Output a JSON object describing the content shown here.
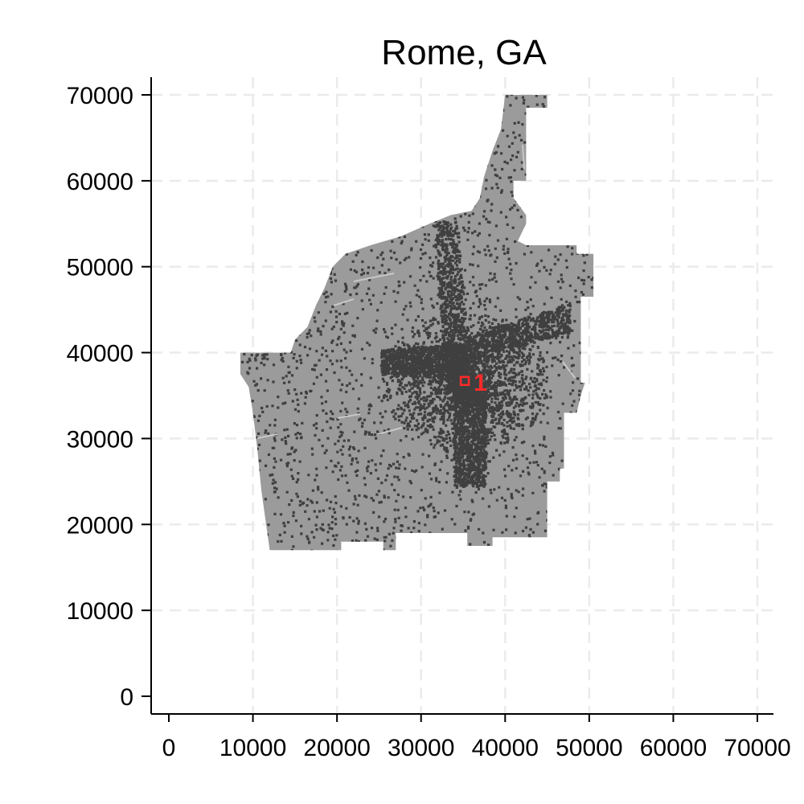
{
  "chart_data": {
    "type": "map",
    "title": "Rome, GA",
    "x_ticks": [
      0,
      10000,
      20000,
      30000,
      40000,
      50000,
      60000,
      70000
    ],
    "y_ticks": [
      0,
      10000,
      20000,
      30000,
      40000,
      50000,
      60000,
      70000
    ],
    "xlim": [
      0,
      72000
    ],
    "ylim": [
      -2000,
      72000
    ],
    "grid": true,
    "region_color": "#9b9b9b",
    "feature_color": "#3f3f3f",
    "water_color": "#c8c8c8",
    "marker_color": "#ff2a2a",
    "region_outline": [
      [
        8500,
        40000
      ],
      [
        14500,
        40000
      ],
      [
        15000,
        41500
      ],
      [
        16500,
        43000
      ],
      [
        17500,
        45500
      ],
      [
        18500,
        47500
      ],
      [
        19500,
        50000
      ],
      [
        21000,
        51500
      ],
      [
        24000,
        52500
      ],
      [
        27500,
        53500
      ],
      [
        31000,
        55000
      ],
      [
        33500,
        56000
      ],
      [
        36000,
        56500
      ],
      [
        37000,
        58000
      ],
      [
        37500,
        60500
      ],
      [
        38500,
        63500
      ],
      [
        39500,
        66000
      ],
      [
        40000,
        70000
      ],
      [
        45000,
        70000
      ],
      [
        45000,
        68500
      ],
      [
        42500,
        68500
      ],
      [
        42500,
        60000
      ],
      [
        41000,
        60000
      ],
      [
        41000,
        58000
      ],
      [
        42500,
        56000
      ],
      [
        42500,
        55000
      ],
      [
        41500,
        53000
      ],
      [
        42500,
        52500
      ],
      [
        48500,
        52500
      ],
      [
        48500,
        51500
      ],
      [
        50500,
        51500
      ],
      [
        50500,
        46500
      ],
      [
        49000,
        46500
      ],
      [
        49000,
        36500
      ],
      [
        49500,
        36500
      ],
      [
        49000,
        35000
      ],
      [
        48500,
        33000
      ],
      [
        47000,
        33000
      ],
      [
        47000,
        26500
      ],
      [
        46500,
        26500
      ],
      [
        46500,
        25000
      ],
      [
        45000,
        25000
      ],
      [
        45000,
        18500
      ],
      [
        38500,
        18500
      ],
      [
        38500,
        17500
      ],
      [
        35500,
        17500
      ],
      [
        35500,
        19000
      ],
      [
        27000,
        19000
      ],
      [
        27000,
        17000
      ],
      [
        25500,
        17000
      ],
      [
        25500,
        18000
      ],
      [
        20500,
        18000
      ],
      [
        20500,
        17000
      ],
      [
        12000,
        17000
      ],
      [
        11000,
        24000
      ],
      [
        10500,
        29000
      ],
      [
        10000,
        33000
      ],
      [
        9500,
        36000
      ],
      [
        8500,
        37500
      ]
    ],
    "markers": [
      {
        "label": "1",
        "x": 35200,
        "y": 36700
      }
    ]
  }
}
